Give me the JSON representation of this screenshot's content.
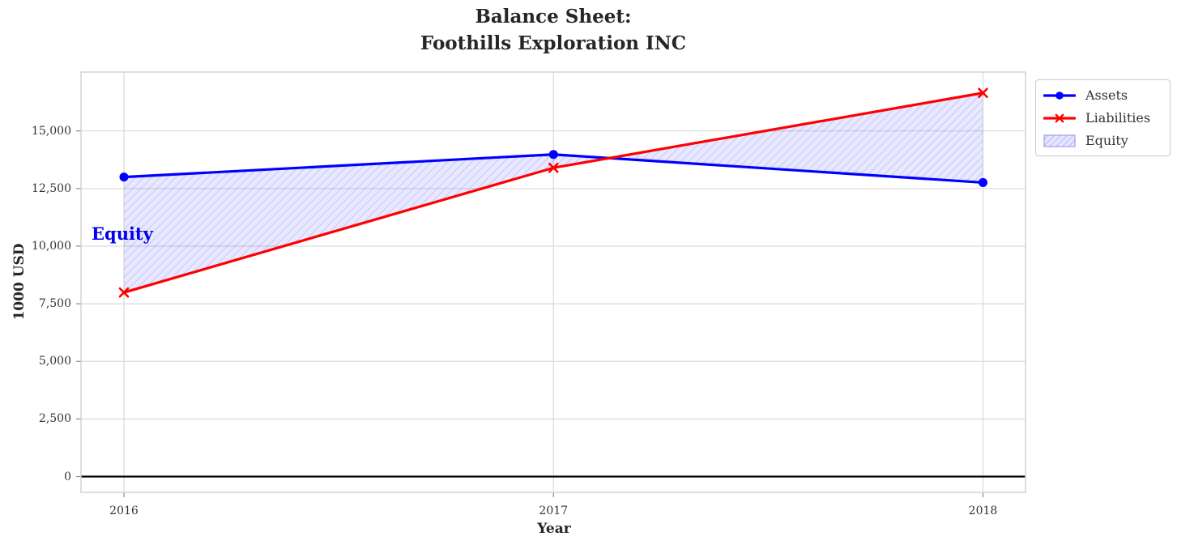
{
  "title": {
    "line1": "Balance Sheet:",
    "line2": "Foothills Exploration INC"
  },
  "axes": {
    "xlabel": "Year",
    "ylabel": "1000 USD",
    "x_ticks": [
      "2016",
      "2017",
      "2018"
    ],
    "y_ticks": [
      "0",
      "2,500",
      "5,000",
      "7,500",
      "10,000",
      "12,500",
      "15,000"
    ]
  },
  "annotation": {
    "equity_label": "Equity"
  },
  "legend": {
    "items": [
      {
        "label": "Assets"
      },
      {
        "label": "Liabilities"
      },
      {
        "label": "Equity"
      }
    ]
  },
  "colors": {
    "assets": "#0000ff",
    "liabilities": "#ff0000",
    "equity_fill": "rgba(0,0,255,0.09)",
    "equity_hatch": "rgba(60,60,255,0.30)",
    "grid": "#d9d9d9",
    "spine": "#cfcfcf",
    "tick_mark": "#8a8a8a",
    "zero_line": "#000000",
    "text": "#333333",
    "annotation_text": "#0000ee"
  },
  "chart_data": {
    "type": "line",
    "title": "Balance Sheet:\nFoothills Exploration INC",
    "xlabel": "Year",
    "ylabel": "1000 USD",
    "x": [
      2016,
      2017,
      2018
    ],
    "series": [
      {
        "name": "Assets",
        "marker": "circle",
        "color": "#0000ff",
        "values": [
          13000,
          13980,
          12760
        ]
      },
      {
        "name": "Liabilities",
        "marker": "x",
        "color": "#ff0000",
        "values": [
          7990,
          13400,
          16650
        ]
      }
    ],
    "area": {
      "name": "Equity",
      "between": [
        "Assets",
        "Liabilities"
      ],
      "values": [
        5010,
        580,
        -3890
      ]
    },
    "yticks": [
      0,
      2500,
      5000,
      7500,
      10000,
      12500,
      15000
    ],
    "ylim": [
      -690,
      17550
    ],
    "grid": true,
    "zero_line": true,
    "legend_position": "upper right, outside axes"
  }
}
